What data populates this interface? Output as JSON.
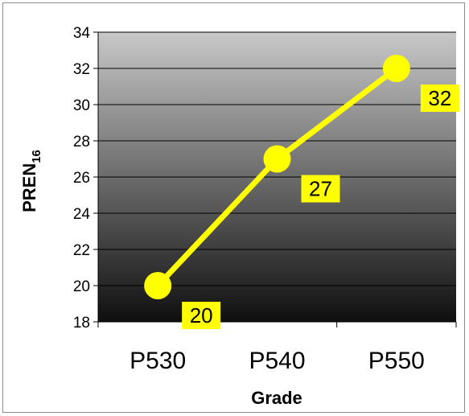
{
  "chart_data": {
    "type": "line",
    "categories": [
      "P530",
      "P540",
      "P550"
    ],
    "series": [
      {
        "values": [
          20,
          27,
          32
        ],
        "color": "#ffff00"
      }
    ],
    "data_labels": [
      "20",
      "27",
      "32"
    ],
    "xlabel": "Grade",
    "ylabel_main": "PREN",
    "ylabel_sub": "16",
    "ylim": [
      18,
      34
    ],
    "yticks": [
      18,
      20,
      22,
      24,
      26,
      28,
      30,
      32,
      34
    ],
    "grid": true,
    "legend": false,
    "label_background": "#ffff00",
    "plot_background": [
      "#c8c8c8",
      "#0f0f0f"
    ]
  }
}
